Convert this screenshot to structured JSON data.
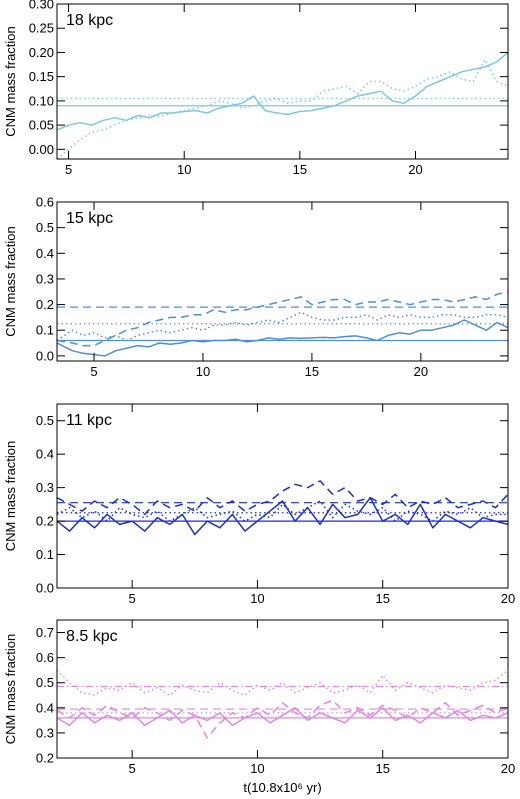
{
  "chart_data": [
    {
      "type": "line",
      "title": "18 kpc",
      "ylabel": "CNM mass fraction",
      "xlabel": "",
      "color": "#7ec8dc",
      "xlim": [
        4.5,
        24
      ],
      "ylim": [
        -0.02,
        0.3
      ],
      "xticks": [
        5,
        10,
        15,
        20
      ],
      "yticks": [
        0.0,
        0.05,
        0.1,
        0.15,
        0.2,
        0.25,
        0.3
      ],
      "ytick_labels": [
        "0.00",
        "0.05",
        "0.10",
        "0.15",
        "0.20",
        "0.25",
        "0.30"
      ],
      "series": [
        {
          "style": "solid",
          "x": [
            4.5,
            5,
            5.5,
            6,
            6.5,
            7,
            7.5,
            8,
            8.5,
            9,
            9.5,
            10,
            10.5,
            11,
            11.5,
            12,
            12.5,
            13,
            13.5,
            14,
            14.5,
            15,
            15.5,
            16,
            16.5,
            17,
            17.5,
            18,
            18.5,
            19,
            19.5,
            20,
            20.5,
            21,
            21.5,
            22,
            22.5,
            23,
            23.5,
            24
          ],
          "y": [
            0.04,
            0.05,
            0.055,
            0.05,
            0.06,
            0.065,
            0.06,
            0.07,
            0.065,
            0.075,
            0.075,
            0.078,
            0.08,
            0.075,
            0.085,
            0.09,
            0.095,
            0.11,
            0.08,
            0.075,
            0.072,
            0.078,
            0.08,
            0.085,
            0.09,
            0.1,
            0.11,
            0.115,
            0.12,
            0.1,
            0.095,
            0.11,
            0.13,
            0.14,
            0.15,
            0.16,
            0.165,
            0.17,
            0.18,
            0.2
          ]
        },
        {
          "style": "dotted",
          "x": [
            4.5,
            5,
            5.5,
            6,
            6.5,
            7,
            7.5,
            8,
            8.5,
            9,
            9.5,
            10,
            10.5,
            11,
            11.5,
            12,
            12.5,
            13,
            13.5,
            14,
            14.5,
            15,
            15.5,
            16,
            16.5,
            17,
            17.5,
            18,
            18.5,
            19,
            19.5,
            20,
            20.5,
            21,
            21.5,
            22,
            22.5,
            23,
            23.5,
            24
          ],
          "y": [
            -0.02,
            0.0,
            0.02,
            0.035,
            0.04,
            0.05,
            0.06,
            0.065,
            0.07,
            0.068,
            0.075,
            0.08,
            0.085,
            0.09,
            0.1,
            0.095,
            0.085,
            0.09,
            0.1,
            0.105,
            0.095,
            0.1,
            0.1,
            0.12,
            0.125,
            0.13,
            0.115,
            0.14,
            0.14,
            0.125,
            0.12,
            0.13,
            0.145,
            0.15,
            0.16,
            0.145,
            0.14,
            0.185,
            0.14,
            0.13
          ]
        },
        {
          "style": "hline-solid",
          "y": 0.09
        },
        {
          "style": "hline-dotted",
          "y": 0.105
        }
      ]
    },
    {
      "type": "line",
      "title": "15 kpc",
      "ylabel": "CNM mass fraction",
      "xlabel": "",
      "color": "#4f8ed8",
      "xlim": [
        3.3,
        24
      ],
      "ylim": [
        -0.02,
        0.6
      ],
      "xticks": [
        5,
        10,
        15,
        20
      ],
      "yticks": [
        0.0,
        0.1,
        0.2,
        0.3,
        0.4,
        0.5,
        0.6
      ],
      "ytick_labels": [
        "0.0",
        "0.1",
        "0.2",
        "0.3",
        "0.4",
        "0.5",
        "0.6"
      ],
      "series": [
        {
          "style": "solid",
          "x": [
            3.3,
            4,
            4.5,
            5,
            5.5,
            6,
            6.5,
            7,
            7.5,
            8,
            8.5,
            9,
            9.5,
            10,
            10.5,
            11,
            11.5,
            12,
            12.5,
            13,
            13.5,
            14,
            14.5,
            15,
            15.5,
            16,
            16.5,
            17,
            17.5,
            18,
            18.5,
            19,
            19.5,
            20,
            20.5,
            21,
            21.5,
            22,
            22.5,
            23,
            23.5,
            24
          ],
          "y": [
            0.05,
            0.02,
            0.01,
            0.005,
            0.0,
            0.02,
            0.03,
            0.04,
            0.035,
            0.05,
            0.045,
            0.05,
            0.06,
            0.055,
            0.06,
            0.06,
            0.065,
            0.055,
            0.06,
            0.07,
            0.065,
            0.07,
            0.068,
            0.07,
            0.072,
            0.07,
            0.075,
            0.078,
            0.07,
            0.06,
            0.08,
            0.09,
            0.085,
            0.1,
            0.1,
            0.11,
            0.12,
            0.14,
            0.12,
            0.1,
            0.13,
            0.11
          ]
        },
        {
          "style": "dotted",
          "x": [
            3.3,
            4,
            4.5,
            5,
            5.5,
            6,
            6.5,
            7,
            7.5,
            8,
            8.5,
            9,
            9.5,
            10,
            10.5,
            11,
            11.5,
            12,
            12.5,
            13,
            13.5,
            14,
            14.5,
            15,
            15.5,
            16,
            16.5,
            17,
            17.5,
            18,
            18.5,
            19,
            19.5,
            20,
            20.5,
            21,
            21.5,
            22,
            22.5,
            23,
            23.5,
            24
          ],
          "y": [
            0.06,
            0.1,
            0.08,
            0.09,
            0.07,
            0.08,
            0.06,
            0.08,
            0.09,
            0.1,
            0.09,
            0.1,
            0.11,
            0.1,
            0.12,
            0.12,
            0.13,
            0.12,
            0.13,
            0.14,
            0.13,
            0.15,
            0.17,
            0.15,
            0.14,
            0.14,
            0.15,
            0.15,
            0.16,
            0.14,
            0.16,
            0.15,
            0.16,
            0.15,
            0.15,
            0.16,
            0.16,
            0.15,
            0.15,
            0.16,
            0.16,
            0.15
          ]
        },
        {
          "style": "dashed",
          "x": [
            3.3,
            4,
            4.5,
            5,
            5.5,
            6,
            6.5,
            7,
            7.5,
            8,
            8.5,
            9,
            9.5,
            10,
            10.5,
            11,
            11.5,
            12,
            12.5,
            13,
            13.5,
            14,
            14.5,
            15,
            15.5,
            16,
            16.5,
            17,
            17.5,
            18,
            18.5,
            19,
            19.5,
            20,
            20.5,
            21,
            21.5,
            22,
            22.5,
            23,
            23.5,
            24
          ],
          "y": [
            0.06,
            0.05,
            0.04,
            0.04,
            0.06,
            0.08,
            0.1,
            0.11,
            0.13,
            0.14,
            0.15,
            0.15,
            0.16,
            0.16,
            0.18,
            0.17,
            0.18,
            0.18,
            0.19,
            0.2,
            0.21,
            0.22,
            0.23,
            0.2,
            0.21,
            0.22,
            0.22,
            0.2,
            0.21,
            0.21,
            0.22,
            0.21,
            0.2,
            0.21,
            0.22,
            0.22,
            0.21,
            0.22,
            0.23,
            0.22,
            0.24,
            0.25
          ]
        },
        {
          "style": "hline-solid",
          "y": 0.06
        },
        {
          "style": "hline-dotted",
          "y": 0.125
        },
        {
          "style": "hline-dashed",
          "y": 0.19
        }
      ]
    },
    {
      "type": "line",
      "title": "11 kpc",
      "ylabel": "CNM mass fraction",
      "xlabel": "",
      "color": "#1c2fc6",
      "xlim": [
        2,
        20
      ],
      "ylim": [
        0.0,
        0.55
      ],
      "xticks": [
        5,
        10,
        15,
        20
      ],
      "yticks": [
        0.0,
        0.1,
        0.2,
        0.3,
        0.4,
        0.5
      ],
      "ytick_labels": [
        "0.0",
        "0.1",
        "0.2",
        "0.3",
        "0.4",
        "0.5"
      ],
      "series": [
        {
          "style": "solid",
          "x": [
            2,
            2.5,
            3,
            3.5,
            4,
            4.5,
            5,
            5.5,
            6,
            6.5,
            7,
            7.5,
            8,
            8.5,
            9,
            9.5,
            10,
            10.5,
            11,
            11.5,
            12,
            12.5,
            13,
            13.5,
            14,
            14.5,
            15,
            15.5,
            16,
            16.5,
            17,
            17.5,
            18,
            18.5,
            19,
            19.5,
            20
          ],
          "y": [
            0.2,
            0.17,
            0.21,
            0.18,
            0.22,
            0.19,
            0.2,
            0.17,
            0.21,
            0.19,
            0.22,
            0.16,
            0.2,
            0.18,
            0.22,
            0.17,
            0.2,
            0.23,
            0.26,
            0.2,
            0.24,
            0.19,
            0.25,
            0.21,
            0.22,
            0.27,
            0.2,
            0.22,
            0.19,
            0.25,
            0.18,
            0.22,
            0.2,
            0.18,
            0.21,
            0.2,
            0.19
          ]
        },
        {
          "style": "dotted",
          "x": [
            2,
            2.5,
            3,
            3.5,
            4,
            4.5,
            5,
            5.5,
            6,
            6.5,
            7,
            7.5,
            8,
            8.5,
            9,
            9.5,
            10,
            10.5,
            11,
            11.5,
            12,
            12.5,
            13,
            13.5,
            14,
            14.5,
            15,
            15.5,
            16,
            16.5,
            17,
            17.5,
            18,
            18.5,
            19,
            19.5,
            20
          ],
          "y": [
            0.22,
            0.24,
            0.21,
            0.23,
            0.2,
            0.24,
            0.22,
            0.21,
            0.23,
            0.2,
            0.22,
            0.24,
            0.21,
            0.22,
            0.23,
            0.2,
            0.22,
            0.21,
            0.25,
            0.22,
            0.24,
            0.26,
            0.21,
            0.25,
            0.23,
            0.22,
            0.24,
            0.2,
            0.23,
            0.22,
            0.2,
            0.23,
            0.22,
            0.24,
            0.21,
            0.22,
            0.22
          ]
        },
        {
          "style": "dashed",
          "x": [
            2,
            2.5,
            3,
            3.5,
            4,
            4.5,
            5,
            5.5,
            6,
            6.5,
            7,
            7.5,
            8,
            8.5,
            9,
            9.5,
            10,
            10.5,
            11,
            11.5,
            12,
            12.5,
            13,
            13.5,
            14,
            14.5,
            15,
            15.5,
            16,
            16.5,
            17,
            17.5,
            18,
            18.5,
            19,
            19.5,
            20
          ],
          "y": [
            0.27,
            0.25,
            0.23,
            0.26,
            0.24,
            0.27,
            0.25,
            0.22,
            0.26,
            0.24,
            0.25,
            0.23,
            0.27,
            0.24,
            0.26,
            0.23,
            0.25,
            0.26,
            0.29,
            0.31,
            0.3,
            0.32,
            0.28,
            0.3,
            0.26,
            0.27,
            0.25,
            0.28,
            0.24,
            0.26,
            0.25,
            0.27,
            0.24,
            0.25,
            0.26,
            0.24,
            0.28
          ]
        },
        {
          "style": "hline-solid",
          "y": 0.2
        },
        {
          "style": "hline-dotted",
          "y": 0.225
        },
        {
          "style": "hline-dashed",
          "y": 0.255
        }
      ]
    },
    {
      "type": "line",
      "title": "8.5 kpc",
      "ylabel": "CNM mass fraction",
      "xlabel": "t(10.8x10⁶ yr)",
      "color": "#de88e0",
      "xlim": [
        2,
        20
      ],
      "ylim": [
        0.2,
        0.75
      ],
      "xticks": [
        5,
        10,
        15,
        20
      ],
      "yticks": [
        0.2,
        0.3,
        0.4,
        0.5,
        0.6,
        0.7
      ],
      "ytick_labels": [
        "0.2",
        "0.3",
        "0.4",
        "0.5",
        "0.6",
        "0.7"
      ],
      "series": [
        {
          "style": "solid",
          "x": [
            2,
            2.5,
            3,
            3.5,
            4,
            4.5,
            5,
            5.5,
            6,
            6.5,
            7,
            7.5,
            8,
            8.5,
            9,
            9.5,
            10,
            10.5,
            11,
            11.5,
            12,
            12.5,
            13,
            13.5,
            14,
            14.5,
            15,
            15.5,
            16,
            16.5,
            17,
            17.5,
            18,
            18.5,
            19,
            19.5,
            20
          ],
          "y": [
            0.36,
            0.33,
            0.38,
            0.34,
            0.37,
            0.35,
            0.38,
            0.33,
            0.36,
            0.39,
            0.34,
            0.37,
            0.35,
            0.38,
            0.33,
            0.36,
            0.38,
            0.34,
            0.37,
            0.4,
            0.35,
            0.38,
            0.36,
            0.34,
            0.39,
            0.36,
            0.4,
            0.35,
            0.37,
            0.34,
            0.38,
            0.36,
            0.39,
            0.35,
            0.37,
            0.36,
            0.38
          ]
        },
        {
          "style": "dotted",
          "x": [
            2,
            2.5,
            3,
            3.5,
            4,
            4.5,
            5,
            5.5,
            6,
            6.5,
            7,
            7.5,
            8,
            8.5,
            9,
            9.5,
            10,
            10.5,
            11,
            11.5,
            12,
            12.5,
            13,
            13.5,
            14,
            14.5,
            15,
            15.5,
            16,
            16.5,
            17,
            17.5,
            18,
            18.5,
            19,
            19.5,
            20
          ],
          "y": [
            0.55,
            0.5,
            0.46,
            0.45,
            0.48,
            0.47,
            0.5,
            0.46,
            0.48,
            0.45,
            0.49,
            0.47,
            0.46,
            0.5,
            0.47,
            0.45,
            0.49,
            0.47,
            0.5,
            0.46,
            0.48,
            0.5,
            0.46,
            0.47,
            0.49,
            0.46,
            0.53,
            0.47,
            0.5,
            0.48,
            0.46,
            0.49,
            0.48,
            0.47,
            0.5,
            0.51,
            0.55
          ]
        },
        {
          "style": "dashed",
          "x": [
            2,
            2.5,
            3,
            3.5,
            4,
            4.5,
            5,
            5.5,
            6,
            6.5,
            7,
            7.5,
            8,
            8.5,
            9,
            9.5,
            10,
            10.5,
            11,
            11.5,
            12,
            12.5,
            13,
            13.5,
            14,
            14.5,
            15,
            15.5,
            16,
            16.5,
            17,
            17.5,
            18,
            18.5,
            19,
            19.5,
            20
          ],
          "y": [
            0.39,
            0.36,
            0.4,
            0.37,
            0.41,
            0.38,
            0.36,
            0.4,
            0.38,
            0.35,
            0.39,
            0.37,
            0.28,
            0.34,
            0.38,
            0.36,
            0.4,
            0.37,
            0.42,
            0.38,
            0.36,
            0.41,
            0.43,
            0.38,
            0.4,
            0.37,
            0.41,
            0.39,
            0.36,
            0.4,
            0.38,
            0.42,
            0.37,
            0.39,
            0.41,
            0.38,
            0.4
          ]
        },
        {
          "style": "hline-solid",
          "y": 0.36
        },
        {
          "style": "hline-dotted",
          "y": 0.38
        },
        {
          "style": "hline-dashed",
          "y": 0.395
        },
        {
          "style": "hline-dashdot",
          "y": 0.485
        }
      ]
    }
  ]
}
